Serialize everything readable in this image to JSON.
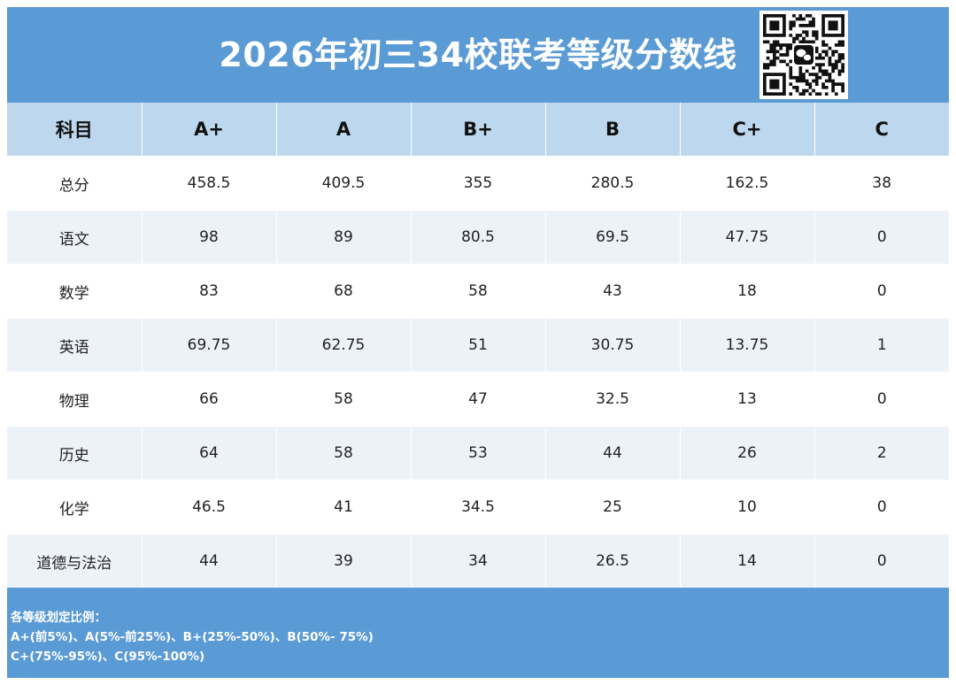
{
  "title": "2026年初三34校联考等级分数线",
  "qr_icon": "wechat-qr-code-icon",
  "table": {
    "headers": [
      "科目",
      "A+",
      "A",
      "B+",
      "B",
      "C+",
      "C"
    ],
    "rows": [
      [
        "总分",
        "458.5",
        "409.5",
        "355",
        "280.5",
        "162.5",
        "38"
      ],
      [
        "语文",
        "98",
        "89",
        "80.5",
        "69.5",
        "47.75",
        "0"
      ],
      [
        "数学",
        "83",
        "68",
        "58",
        "43",
        "18",
        "0"
      ],
      [
        "英语",
        "69.75",
        "62.75",
        "51",
        "30.75",
        "13.75",
        "1"
      ],
      [
        "物理",
        "66",
        "58",
        "47",
        "32.5",
        "13",
        "0"
      ],
      [
        "历史",
        "64",
        "58",
        "53",
        "44",
        "26",
        "2"
      ],
      [
        "化学",
        "46.5",
        "41",
        "34.5",
        "25",
        "10",
        "0"
      ],
      [
        "道德与法治",
        "44",
        "39",
        "34",
        "26.5",
        "14",
        "0"
      ]
    ]
  },
  "footer": {
    "heading": "各等级划定比例：",
    "line1": "A+(前5%)、A(5%-前25%)、B+(25%-50%)、B(50%- 75%)",
    "line2": "C+(75%-95%)、C(95%-100%)"
  },
  "colors": {
    "header_bg": "#5b9bd5",
    "column_header_bg": "#bdd7ee",
    "row_alt_bg": "#edf2f9"
  }
}
